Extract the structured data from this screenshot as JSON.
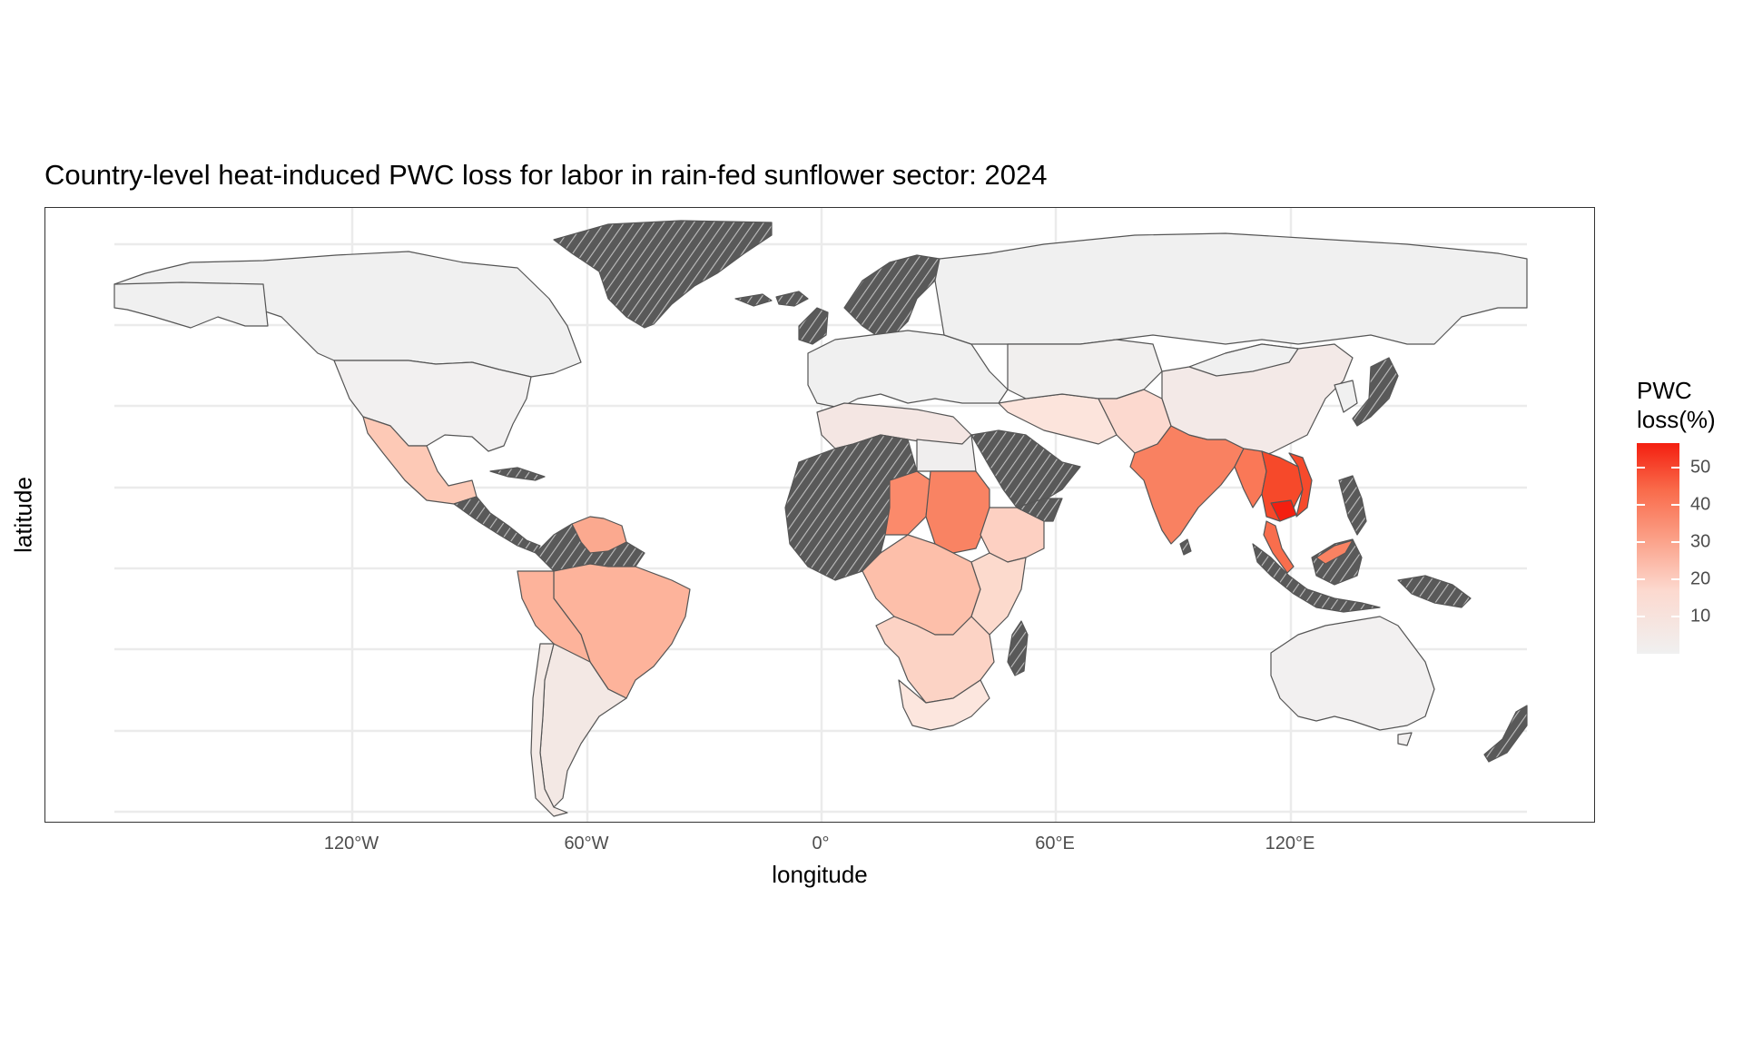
{
  "title": "Country-level heat-induced PWC loss for labor in rain-fed sunflower sector: 2024",
  "xlabel": "longitude",
  "ylabel": "latitude",
  "x_ticks": [
    "120°W",
    "60°W",
    "0°",
    "60°E",
    "120°E"
  ],
  "legend": {
    "title_line1": "PWC",
    "title_line2": "loss(%)",
    "ticks": [
      "10",
      "20",
      "30",
      "40",
      "50"
    ],
    "low_color": "#f0f0f0",
    "high_color": "#f41f10"
  },
  "colors": {
    "no_data_hatch_bg": "#595959",
    "no_data_hatch_line": "#bfbfbf",
    "border": "#555555",
    "grid": "#ebebeb"
  }
}
